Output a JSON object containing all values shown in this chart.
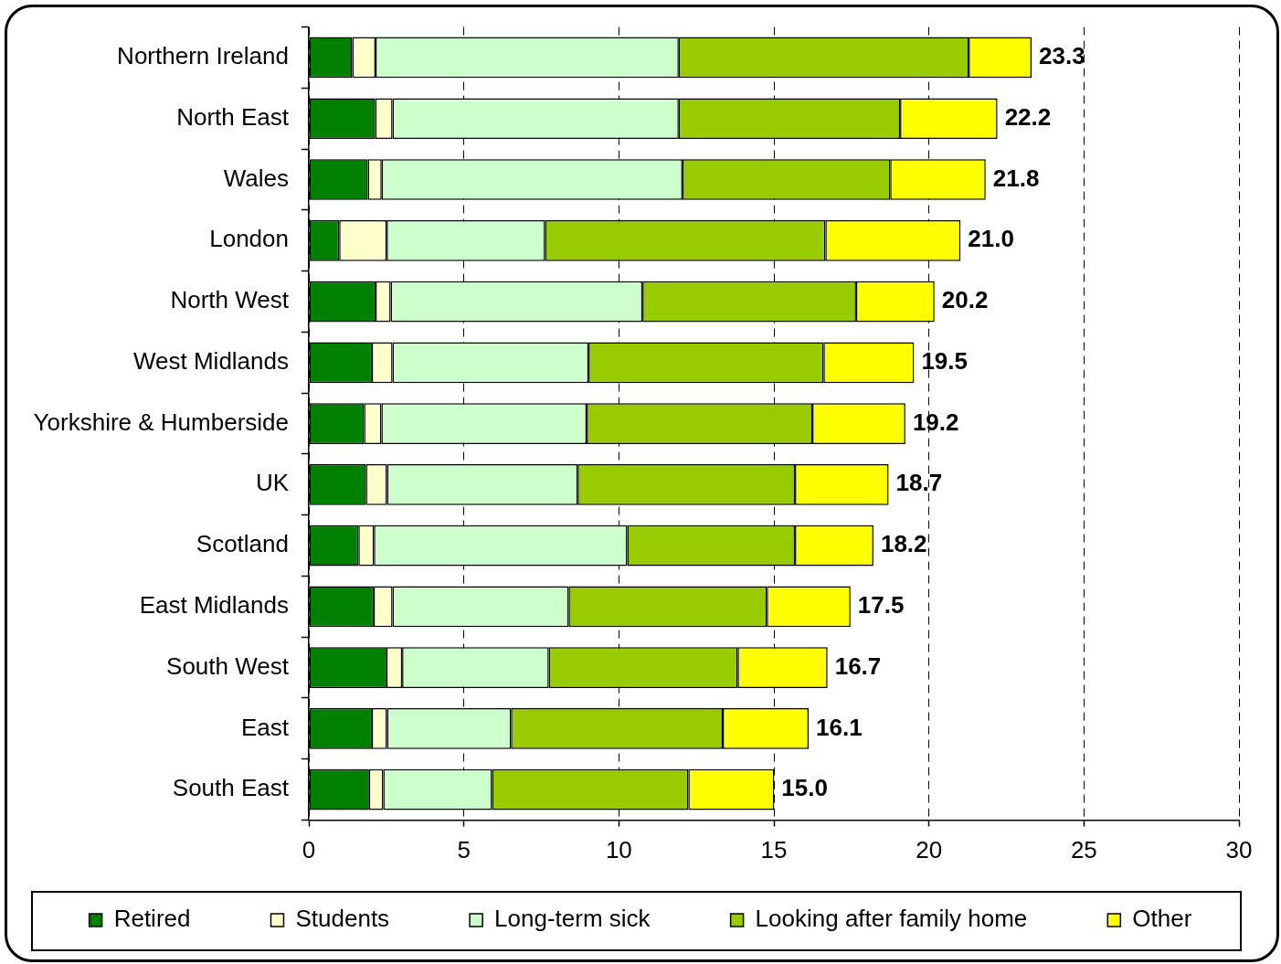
{
  "chart_data": {
    "type": "bar",
    "orientation": "horizontal",
    "stacked": true,
    "categories": [
      "Northern Ireland",
      "North East",
      "Wales",
      "London",
      "North West",
      "West Midlands",
      "Yorkshire & Humberside",
      "UK",
      "Scotland",
      "East Midlands",
      "South West",
      "East",
      "South East"
    ],
    "series": [
      {
        "name": "Retired",
        "color": "#008000",
        "values": [
          1.4,
          2.14,
          1.9,
          0.98,
          2.15,
          2.03,
          1.78,
          1.84,
          1.6,
          2.09,
          2.5,
          2.03,
          1.94
        ]
      },
      {
        "name": "Students",
        "color": "#ffffcc",
        "values": [
          0.75,
          0.56,
          0.45,
          1.53,
          0.49,
          0.67,
          0.56,
          0.68,
          0.5,
          0.61,
          0.51,
          0.49,
          0.46
        ]
      },
      {
        "name": "Long-term sick",
        "color": "#ccffcc",
        "values": [
          9.78,
          9.23,
          9.7,
          5.11,
          8.12,
          6.32,
          6.62,
          6.15,
          8.17,
          5.68,
          4.73,
          4.0,
          3.51
        ]
      },
      {
        "name": "Looking after family home",
        "color": "#99cc00",
        "values": [
          9.35,
          7.14,
          6.7,
          9.04,
          6.89,
          7.58,
          7.28,
          7.01,
          5.41,
          6.39,
          6.09,
          6.83,
          6.33
        ]
      },
      {
        "name": "Other",
        "color": "#ffff00",
        "values": [
          2.03,
          3.14,
          3.08,
          4.36,
          2.53,
          2.92,
          3.0,
          3.02,
          2.53,
          2.7,
          2.9,
          2.77,
          2.77
        ]
      }
    ],
    "totals": [
      "23.3",
      "22.2",
      "21.8",
      "21.0",
      "20.2",
      "19.5",
      "19.2",
      "18.7",
      "18.2",
      "17.5",
      "16.7",
      "16.1",
      "15.0"
    ],
    "xlim": [
      0,
      30
    ],
    "xticks": [
      0,
      5,
      10,
      15,
      20,
      25,
      30
    ],
    "grid": "x",
    "legend": "bottom"
  }
}
